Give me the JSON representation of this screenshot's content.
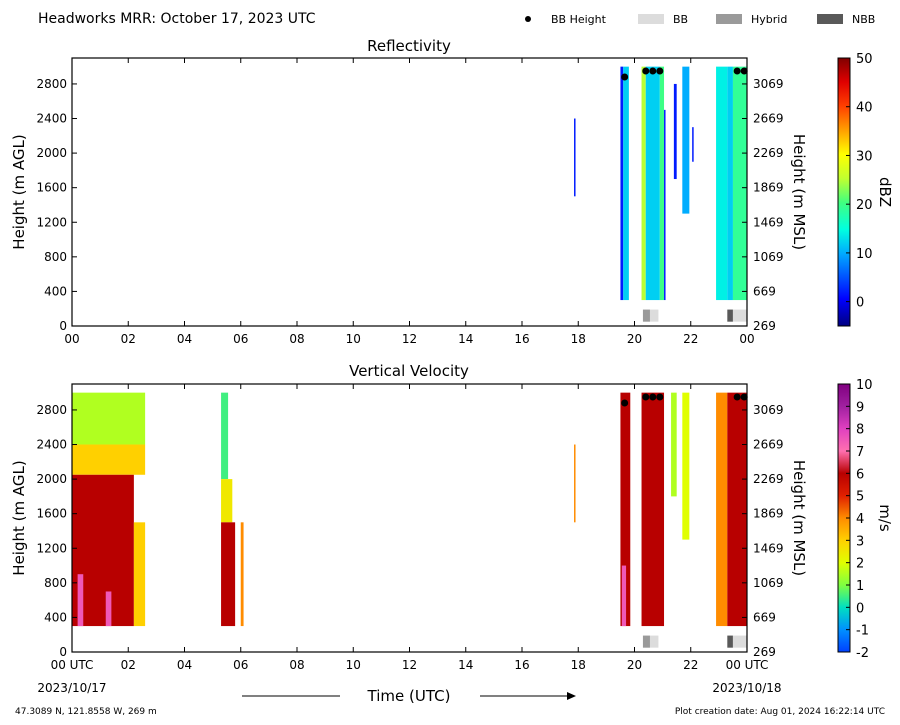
{
  "header": {
    "title": "Headworks MRR:  October 17, 2023 UTC",
    "legend": [
      {
        "label": "BB Height",
        "kind": "dot",
        "color": "#000000"
      },
      {
        "label": "BB",
        "kind": "swatch",
        "color": "#dcdcdc"
      },
      {
        "label": "Hybrid",
        "kind": "swatch",
        "color": "#9a9a9a"
      },
      {
        "label": "NBB",
        "kind": "swatch",
        "color": "#595959"
      }
    ]
  },
  "footer": {
    "location": "47.3089 N, 121.8558 W, 269 m",
    "creation": "Plot creation date: Aug 01, 2024 16:22:14 UTC",
    "time_label": "Time (UTC)",
    "start_date": "2023/10/17",
    "end_date": "2023/10/18"
  },
  "chart_data": [
    {
      "type": "heatmap",
      "title": "Reflectivity",
      "xlabel": "",
      "ylabel": "Height (m AGL)",
      "ylabel_right": "Height (m MSL)",
      "xlim": [
        0,
        24
      ],
      "ylim": [
        0,
        3100
      ],
      "x_ticks": [
        "00",
        "02",
        "04",
        "06",
        "08",
        "10",
        "12",
        "14",
        "16",
        "18",
        "20",
        "22",
        "00"
      ],
      "y_ticks": [
        0,
        400,
        800,
        1200,
        1600,
        2000,
        2400,
        2800
      ],
      "y_ticks_right": [
        269,
        669,
        1069,
        1469,
        1869,
        2269,
        2669,
        3069
      ],
      "colorbar": {
        "label": "dBZ",
        "min": -5,
        "max": 50,
        "ticks": [
          0,
          10,
          20,
          30,
          40,
          50
        ]
      },
      "cells": [
        {
          "x0": 17.85,
          "x1": 17.9,
          "y0": 1500,
          "y1": 2400,
          "v": 2
        },
        {
          "x0": 19.5,
          "x1": 19.6,
          "y0": 300,
          "y1": 3000,
          "v": 2
        },
        {
          "x0": 19.6,
          "x1": 19.8,
          "y0": 300,
          "y1": 3000,
          "v": 12
        },
        {
          "x0": 20.25,
          "x1": 20.4,
          "y0": 300,
          "y1": 3000,
          "v": 25
        },
        {
          "x0": 20.4,
          "x1": 20.9,
          "y0": 300,
          "y1": 3000,
          "v": 12
        },
        {
          "x0": 20.9,
          "x1": 21.05,
          "y0": 300,
          "y1": 3000,
          "v": 20
        },
        {
          "x0": 21.05,
          "x1": 21.1,
          "y0": 300,
          "y1": 2500,
          "v": 2
        },
        {
          "x0": 21.4,
          "x1": 21.5,
          "y0": 1700,
          "y1": 2800,
          "v": 2
        },
        {
          "x0": 21.7,
          "x1": 21.95,
          "y0": 1300,
          "y1": 3000,
          "v": 10
        },
        {
          "x0": 22.05,
          "x1": 22.1,
          "y0": 1900,
          "y1": 2300,
          "v": 2
        },
        {
          "x0": 22.9,
          "x1": 23.3,
          "y0": 300,
          "y1": 3000,
          "v": 14
        },
        {
          "x0": 23.3,
          "x1": 23.5,
          "y0": 300,
          "y1": 3000,
          "v": 12
        },
        {
          "x0": 23.5,
          "x1": 24.0,
          "y0": 300,
          "y1": 3000,
          "v": 19
        }
      ],
      "bb_height": [
        {
          "x": 19.65,
          "y": 2880
        },
        {
          "x": 20.4,
          "y": 2950
        },
        {
          "x": 20.65,
          "y": 2950
        },
        {
          "x": 20.9,
          "y": 2950
        },
        {
          "x": 23.65,
          "y": 2950
        },
        {
          "x": 23.9,
          "y": 2950
        }
      ],
      "bb_type": [
        {
          "x0": 20.3,
          "x1": 20.55,
          "kind": "Hybrid"
        },
        {
          "x0": 20.55,
          "x1": 20.85,
          "kind": "BB"
        },
        {
          "x0": 23.3,
          "x1": 23.5,
          "kind": "NBB"
        },
        {
          "x0": 23.5,
          "x1": 24.0,
          "kind": "BB"
        }
      ]
    },
    {
      "type": "heatmap",
      "title": "Vertical Velocity",
      "xlabel": "Time (UTC)",
      "ylabel": "Height (m AGL)",
      "ylabel_right": "Height (m MSL)",
      "xlim": [
        0,
        24
      ],
      "ylim": [
        0,
        3100
      ],
      "x_ticks": [
        "00 UTC",
        "02",
        "04",
        "06",
        "08",
        "10",
        "12",
        "14",
        "16",
        "18",
        "20",
        "22",
        "00 UTC"
      ],
      "y_ticks": [
        0,
        400,
        800,
        1200,
        1600,
        2000,
        2400,
        2800
      ],
      "y_ticks_right": [
        269,
        669,
        1069,
        1469,
        1869,
        2269,
        2669,
        3069
      ],
      "colorbar": {
        "label": "m/s",
        "min": -2,
        "max": 10,
        "ticks": [
          -2,
          -1,
          0,
          1,
          2,
          3,
          4,
          5,
          6,
          7,
          8,
          9,
          10
        ]
      },
      "cells": [
        {
          "x0": 0.0,
          "x1": 2.6,
          "y0": 2400,
          "y1": 3000,
          "v": 1.5
        },
        {
          "x0": 0.0,
          "x1": 2.6,
          "y0": 2050,
          "y1": 2400,
          "v": 3
        },
        {
          "x0": 0.0,
          "x1": 2.2,
          "y0": 300,
          "y1": 2050,
          "v": 6
        },
        {
          "x0": 2.2,
          "x1": 2.6,
          "y0": 300,
          "y1": 1500,
          "v": 3
        },
        {
          "x0": 0.2,
          "x1": 0.4,
          "y0": 300,
          "y1": 900,
          "v": 7.5
        },
        {
          "x0": 1.2,
          "x1": 1.4,
          "y0": 300,
          "y1": 700,
          "v": 7.5
        },
        {
          "x0": 5.3,
          "x1": 5.55,
          "y0": 2000,
          "y1": 3000,
          "v": 0.5
        },
        {
          "x0": 5.3,
          "x1": 5.7,
          "y0": 1500,
          "y1": 2000,
          "v": 2.5
        },
        {
          "x0": 5.3,
          "x1": 5.8,
          "y0": 300,
          "y1": 1500,
          "v": 6
        },
        {
          "x0": 6.0,
          "x1": 6.1,
          "y0": 300,
          "y1": 1500,
          "v": 4
        },
        {
          "x0": 17.85,
          "x1": 17.9,
          "y0": 1500,
          "y1": 2400,
          "v": 4
        },
        {
          "x0": 19.5,
          "x1": 19.85,
          "y0": 300,
          "y1": 3000,
          "v": 6
        },
        {
          "x0": 19.55,
          "x1": 19.7,
          "y0": 300,
          "y1": 1000,
          "v": 7.5
        },
        {
          "x0": 20.25,
          "x1": 21.05,
          "y0": 300,
          "y1": 3000,
          "v": 6
        },
        {
          "x0": 21.3,
          "x1": 21.5,
          "y0": 1800,
          "y1": 3000,
          "v": 1.5
        },
        {
          "x0": 21.7,
          "x1": 21.95,
          "y0": 1300,
          "y1": 3000,
          "v": 2
        },
        {
          "x0": 22.9,
          "x1": 23.3,
          "y0": 300,
          "y1": 3000,
          "v": 4
        },
        {
          "x0": 23.3,
          "x1": 24.0,
          "y0": 300,
          "y1": 3000,
          "v": 6
        }
      ],
      "bb_height": [
        {
          "x": 19.65,
          "y": 2880
        },
        {
          "x": 20.4,
          "y": 2950
        },
        {
          "x": 20.65,
          "y": 2950
        },
        {
          "x": 20.9,
          "y": 2950
        },
        {
          "x": 23.65,
          "y": 2950
        },
        {
          "x": 23.9,
          "y": 2950
        }
      ],
      "bb_type": [
        {
          "x0": 20.3,
          "x1": 20.55,
          "kind": "Hybrid"
        },
        {
          "x0": 20.55,
          "x1": 20.85,
          "kind": "BB"
        },
        {
          "x0": 23.3,
          "x1": 23.5,
          "kind": "NBB"
        },
        {
          "x0": 23.5,
          "x1": 24.0,
          "kind": "BB"
        }
      ]
    }
  ]
}
